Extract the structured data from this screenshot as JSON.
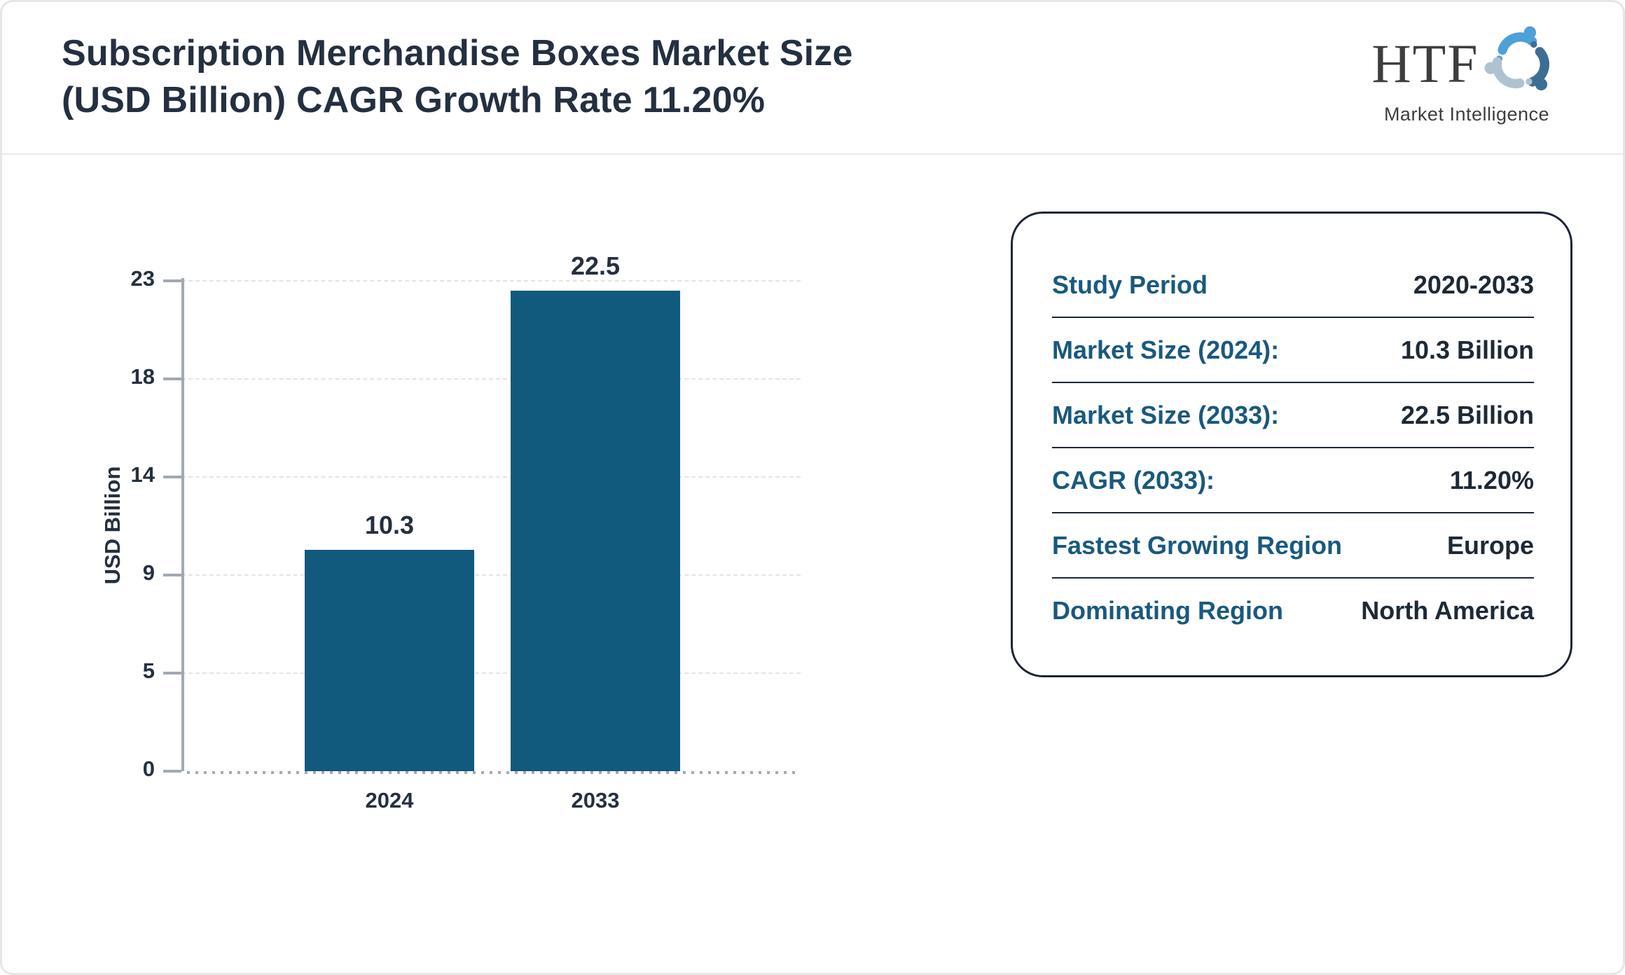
{
  "header": {
    "title_line1": "Subscription Merchandise Boxes Market Size",
    "title_line2": "(USD Billion) CAGR Growth Rate 11.20%"
  },
  "logo": {
    "text": "HTF",
    "subtext": "Market Intelligence",
    "swirl_colors": [
      "#4da0d8",
      "#3c6e96",
      "#afc2d2"
    ]
  },
  "chart_data": {
    "type": "bar",
    "title": "Subscription Merchandise Boxes Market Size (USD Billion) CAGR Growth Rate 11.20%",
    "categories": [
      "2024",
      "2033"
    ],
    "values": [
      10.3,
      22.5
    ],
    "value_labels": [
      "10.3",
      "22.5"
    ],
    "xlabel": "",
    "ylabel": "USD Billion",
    "yticks": [
      0,
      5,
      9,
      14,
      18,
      23
    ],
    "ylim": [
      0,
      23
    ],
    "bar_color": "#115a7d",
    "grid": "horizontal-dashed",
    "legend": "none"
  },
  "info_panel": {
    "rows": [
      {
        "label": "Study Period",
        "value": "2020-2033"
      },
      {
        "label": "Market Size (2024):",
        "value": "10.3 Billion"
      },
      {
        "label": "Market Size (2033):",
        "value": "22.5 Billion"
      },
      {
        "label": "CAGR (2033):",
        "value": "11.20%"
      },
      {
        "label": "Fastest Growing Region",
        "value": "Europe"
      },
      {
        "label": "Dominating Region",
        "value": "North America"
      }
    ]
  },
  "colors": {
    "bar": "#115a7d",
    "title_text": "#243040",
    "panel_label": "#19597e",
    "panel_value": "#1e2936",
    "panel_border": "#1c2636",
    "axis": "#a2a9b3",
    "gridline": "#e4e4e4",
    "card_border": "#e4e6ea",
    "header_divider": "#e9eaee",
    "logo_text": "#3e3e3e"
  }
}
